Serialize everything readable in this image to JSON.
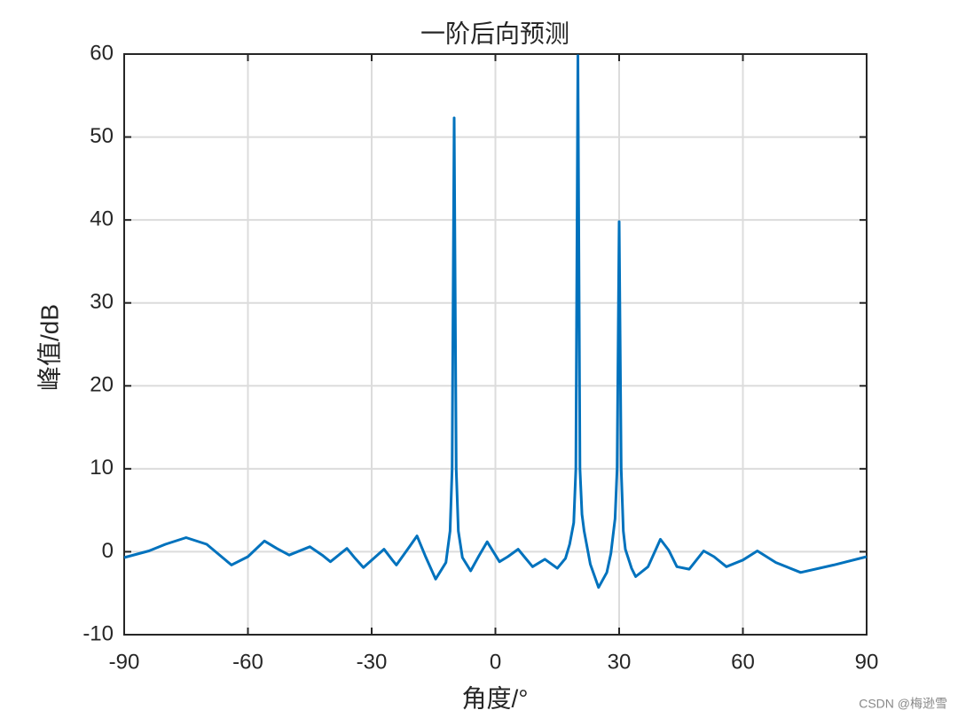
{
  "chart_data": {
    "type": "line",
    "title": "一阶后向预测",
    "x_label": "角度/°",
    "y_label": "峰值/dB",
    "watermark": "CSDN @梅逊雪",
    "xlim": [
      -90,
      90
    ],
    "ylim": [
      -10,
      60
    ],
    "xticks": [
      -90,
      -60,
      -30,
      0,
      30,
      60,
      90
    ],
    "yticks": [
      -10,
      0,
      10,
      20,
      30,
      40,
      50,
      60
    ],
    "grid": true,
    "series": [
      {
        "color": "#0072bd",
        "x": [
          -90,
          -84,
          -80,
          -75,
          -70,
          -64,
          -60,
          -56,
          -53,
          -50,
          -45,
          -42,
          -40,
          -36,
          -34,
          -32,
          -27,
          -25,
          -24,
          -21,
          -19,
          -17,
          -14.5,
          -12,
          -11,
          -10.5,
          -10,
          -9.5,
          -9,
          -8,
          -6,
          -4,
          -2,
          1,
          3,
          5.5,
          7,
          9,
          12,
          15,
          17,
          18,
          19,
          19.5,
          20,
          20.5,
          21,
          21.5,
          23,
          25,
          27,
          28,
          29,
          29.5,
          30,
          30.5,
          31,
          31.5,
          33,
          34,
          37,
          40,
          42,
          44,
          47,
          50.5,
          53,
          56,
          60,
          63.5,
          68,
          74,
          82,
          90
        ],
        "values": [
          -0.7,
          0.1,
          0.9,
          1.7,
          0.9,
          -1.6,
          -0.6,
          1.3,
          0.4,
          -0.4,
          0.6,
          -0.4,
          -1.2,
          0.4,
          -0.8,
          -1.9,
          0.3,
          -1.0,
          -1.6,
          0.5,
          1.9,
          -0.5,
          -3.3,
          -1.3,
          2.5,
          10,
          52.3,
          10,
          2.5,
          -0.7,
          -2.3,
          -0.5,
          1.2,
          -1.2,
          -0.6,
          0.3,
          -0.6,
          -1.8,
          -0.9,
          -2.0,
          -0.8,
          0.9,
          3.5,
          10,
          59.8,
          10,
          4.5,
          2.5,
          -1.5,
          -4.3,
          -2.5,
          -0.2,
          4,
          10,
          39.8,
          10,
          2.5,
          0.3,
          -2.0,
          -3.0,
          -1.8,
          1.5,
          0.2,
          -1.8,
          -2.1,
          0.1,
          -0.6,
          -1.8,
          -1.0,
          0.1,
          -1.3,
          -2.5,
          -1.6,
          -0.6
        ]
      }
    ]
  }
}
